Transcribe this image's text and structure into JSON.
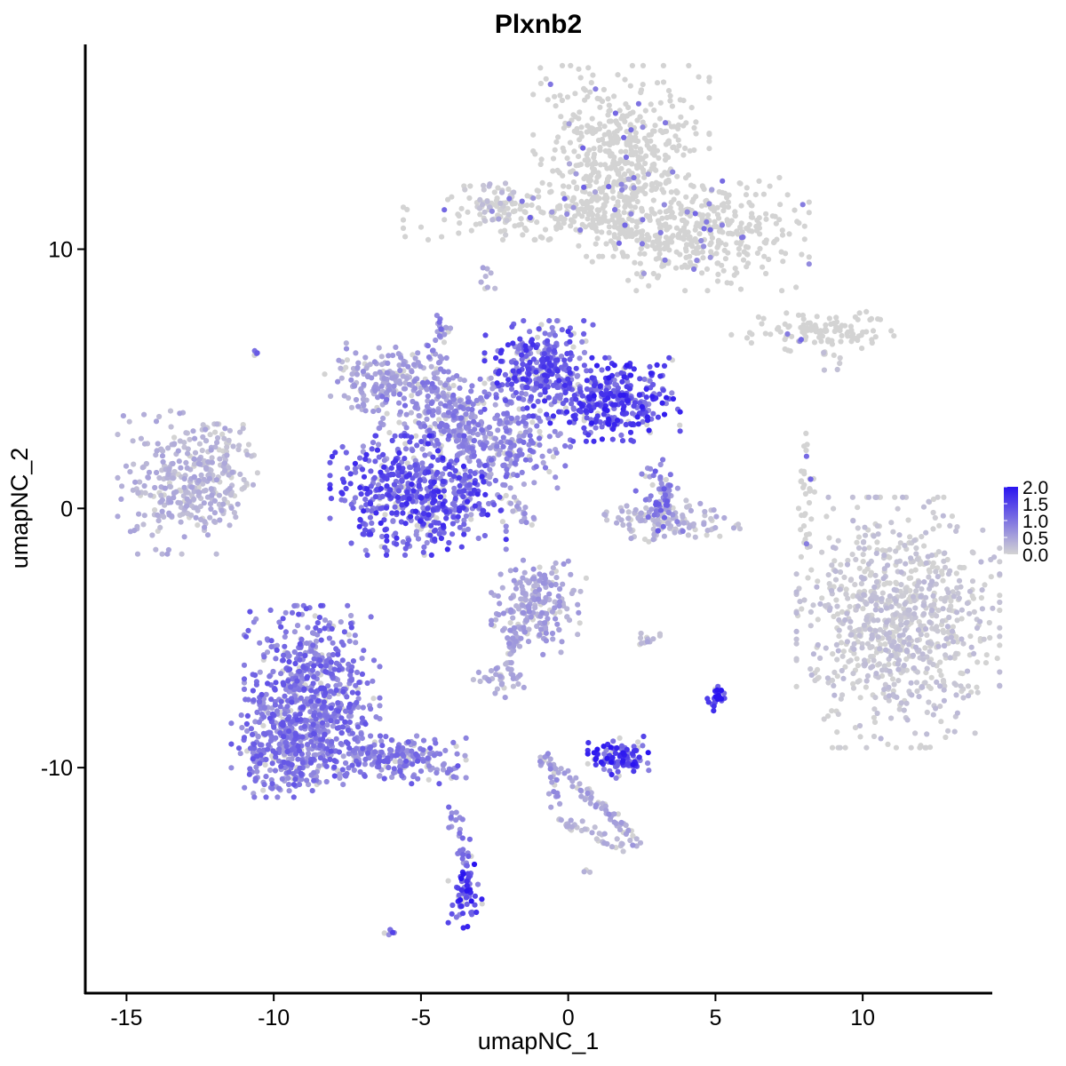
{
  "chart_data": {
    "type": "scatter",
    "title": "Plxnb2",
    "xlabel": "umapNC_1",
    "ylabel": "umapNC_2",
    "xlim": [
      -16.4,
      14.4
    ],
    "ylim": [
      -18.7,
      17.9
    ],
    "x_ticks": [
      -15,
      -10,
      -5,
      0,
      5,
      10
    ],
    "x_tick_labels": [
      "-15",
      "-10",
      "-5",
      "0",
      "5",
      "10"
    ],
    "y_ticks": [
      -10,
      0,
      10
    ],
    "y_tick_labels": [
      "-10",
      "0",
      "10"
    ],
    "grid": false,
    "legend_placement": "right",
    "color_scale": {
      "low_color": "#d3d3d3",
      "high_color": "#2a14f0",
      "min": 0.0,
      "max": 2.0,
      "breaks": [
        0.0,
        0.5,
        1.0,
        1.5,
        2.0
      ],
      "break_labels": [
        "0.0",
        "0.5",
        "1.0",
        "1.5",
        "2.0"
      ]
    },
    "clusters": [
      {
        "center": [
          1.8,
          13.4
        ],
        "spread": [
          1.3,
          1.6
        ],
        "level": 0.05,
        "n": 520
      },
      {
        "center": [
          4.5,
          10.7
        ],
        "spread": [
          1.6,
          1.0
        ],
        "level": 0.05,
        "n": 380
      },
      {
        "center": [
          -1.0,
          11.4
        ],
        "spread": [
          2.0,
          0.45
        ],
        "level": 0.07,
        "n": 160
      },
      {
        "center": [
          -2.6,
          11.7
        ],
        "spread": [
          0.4,
          0.5
        ],
        "level": 0.15,
        "n": 45
      },
      {
        "center": [
          -2.7,
          8.7
        ],
        "spread": [
          0.15,
          0.3
        ],
        "level": 0.4,
        "n": 8
      },
      {
        "center": [
          8.3,
          6.8
        ],
        "spread": [
          1.2,
          0.35
        ],
        "level": 0.07,
        "n": 110
      },
      {
        "center": [
          8.8,
          5.9
        ],
        "spread": [
          0.25,
          0.3
        ],
        "level": 0.1,
        "n": 10
      },
      {
        "center": [
          -13.0,
          1.0
        ],
        "spread": [
          1.0,
          1.2
        ],
        "level": 0.35,
        "n": 300
      },
      {
        "center": [
          -11.7,
          1.8
        ],
        "spread": [
          0.5,
          0.7
        ],
        "level": 0.15,
        "n": 60
      },
      {
        "center": [
          -5.1,
          0.5
        ],
        "spread": [
          1.3,
          1.0
        ],
        "level": 1.25,
        "n": 560
      },
      {
        "center": [
          -1.0,
          5.4
        ],
        "spread": [
          0.8,
          0.8
        ],
        "level": 1.2,
        "n": 300
      },
      {
        "center": [
          1.5,
          4.2
        ],
        "spread": [
          1.0,
          0.7
        ],
        "level": 1.35,
        "n": 320
      },
      {
        "center": [
          -6.2,
          5.0
        ],
        "spread": [
          0.9,
          0.6
        ],
        "level": 0.5,
        "n": 170
      },
      {
        "center": [
          -4.2,
          3.6
        ],
        "spread": [
          1.2,
          0.8
        ],
        "level": 0.75,
        "n": 230
      },
      {
        "center": [
          -2.0,
          2.4
        ],
        "spread": [
          0.9,
          0.7
        ],
        "level": 0.75,
        "n": 170
      },
      {
        "center": [
          -4.3,
          6.9
        ],
        "spread": [
          0.15,
          0.3
        ],
        "level": 0.8,
        "n": 20
      },
      {
        "center": [
          3.1,
          0.5
        ],
        "spread": [
          0.35,
          0.6
        ],
        "level": 0.9,
        "n": 70
      },
      {
        "center": [
          3.3,
          -0.5
        ],
        "spread": [
          1.1,
          0.35
        ],
        "level": 0.3,
        "n": 120
      },
      {
        "center": [
          8.1,
          0.6
        ],
        "spread": [
          0.15,
          1.3
        ],
        "level": 0.05,
        "n": 35
      },
      {
        "center": [
          11.2,
          -4.4
        ],
        "spread": [
          1.5,
          2.1
        ],
        "level": 0.12,
        "n": 850
      },
      {
        "center": [
          -1.0,
          -3.8
        ],
        "spread": [
          0.7,
          0.8
        ],
        "level": 0.5,
        "n": 200
      },
      {
        "center": [
          -2.3,
          -6.6
        ],
        "spread": [
          0.4,
          0.3
        ],
        "level": 0.4,
        "n": 40
      },
      {
        "center": [
          -8.7,
          -7.2
        ],
        "spread": [
          1.0,
          1.5
        ],
        "level": 0.95,
        "n": 620
      },
      {
        "center": [
          -9.6,
          -9.3
        ],
        "spread": [
          0.8,
          0.8
        ],
        "level": 0.9,
        "n": 260
      },
      {
        "center": [
          -6.0,
          -9.7
        ],
        "spread": [
          1.1,
          0.4
        ],
        "level": 0.9,
        "n": 180
      },
      {
        "center": [
          -3.5,
          -14.8
        ],
        "spread": [
          0.25,
          0.6
        ],
        "level": 1.4,
        "n": 70
      },
      {
        "center": [
          1.7,
          -9.6
        ],
        "spread": [
          0.45,
          0.35
        ],
        "level": 1.4,
        "n": 110
      },
      {
        "center": [
          5.0,
          -7.3
        ],
        "spread": [
          0.15,
          0.22
        ],
        "level": 1.7,
        "n": 30
      },
      {
        "center": [
          -10.6,
          6.0
        ],
        "spread": [
          0.08,
          0.08
        ],
        "level": 1.0,
        "n": 4
      },
      {
        "center": [
          -6.0,
          -16.3
        ],
        "spread": [
          0.12,
          0.08
        ],
        "level": 1.3,
        "n": 6
      },
      {
        "center": [
          0.6,
          -14.0
        ],
        "spread": [
          0.06,
          0.06
        ],
        "level": 0.3,
        "n": 3
      }
    ],
    "trails": [
      {
        "from": [
          -4.8,
          6.5
        ],
        "to": [
          -3.4,
          2.0
        ],
        "level": 0.7,
        "n": 45
      },
      {
        "from": [
          -3.0,
          1.5
        ],
        "to": [
          -1.2,
          -0.6
        ],
        "level": 0.6,
        "n": 30
      },
      {
        "from": [
          -3.8,
          5.4
        ],
        "to": [
          -3.3,
          -0.2
        ],
        "level": 0.7,
        "n": 40
      },
      {
        "from": [
          -1.5,
          -4.5
        ],
        "to": [
          -2.4,
          -6.4
        ],
        "level": 0.5,
        "n": 30
      },
      {
        "from": [
          -0.9,
          -9.5
        ],
        "to": [
          2.3,
          -12.7
        ],
        "level": 0.5,
        "n": 65
      },
      {
        "from": [
          -6.0,
          -9.2
        ],
        "to": [
          -3.8,
          -10.3
        ],
        "level": 0.8,
        "n": 40
      },
      {
        "from": [
          -3.9,
          -11.5
        ],
        "to": [
          -3.5,
          -13.8
        ],
        "level": 0.8,
        "n": 25
      },
      {
        "from": [
          -0.8,
          -9.4
        ],
        "to": [
          -0.3,
          -11.9
        ],
        "level": 0.6,
        "n": 20
      },
      {
        "from": [
          -0.4,
          -12.0
        ],
        "to": [
          2.3,
          -13.2
        ],
        "level": 0.3,
        "n": 40
      },
      {
        "from": [
          2.4,
          -5.1
        ],
        "to": [
          3.4,
          -4.9
        ],
        "level": 0.3,
        "n": 12
      },
      {
        "from": [
          0.7,
          11.4
        ],
        "to": [
          3.2,
          10.1
        ],
        "level": 0.05,
        "n": 40
      }
    ]
  }
}
